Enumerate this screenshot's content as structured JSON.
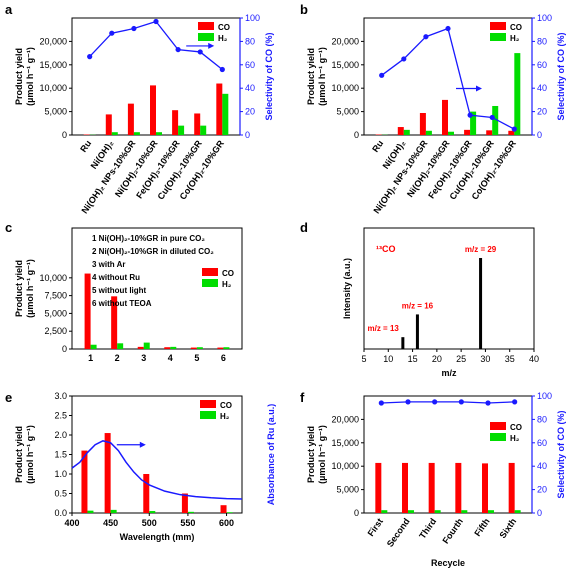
{
  "panel_labels": [
    "a",
    "b",
    "c",
    "d",
    "e",
    "f"
  ],
  "colors": {
    "co": "#ff0000",
    "h2": "#00dd00",
    "sel": "#1a1aff",
    "mass": "#000000",
    "annot": "#ff0000"
  },
  "chart_data": [
    {
      "panel": "a",
      "type": "bar",
      "ylabel_line1": "Product yield",
      "ylabel_line2": "(µmol h⁻¹ g⁻¹)",
      "y2label": "Selectivity of CO (%)",
      "ylim": [
        0,
        25000
      ],
      "yticks": [
        "0",
        "5,000",
        "10,000",
        "15,000",
        "20,000"
      ],
      "y2lim": [
        0,
        100
      ],
      "y2ticks": [
        "0",
        "20",
        "40",
        "60",
        "80",
        "100"
      ],
      "categories": [
        "Ru",
        "Ni(OH)₂",
        "Ni(OH)₂ NPs-10%GR",
        "Ni(OH)₂-10%GR",
        "Fe(OH)₃-10%GR",
        "Cu(OH)₂-10%GR",
        "Co(OH)₂-10%GR"
      ],
      "series": [
        {
          "name": "CO",
          "values": [
            100,
            4400,
            6700,
            10600,
            5300,
            4600,
            11000
          ]
        },
        {
          "name": "H₂",
          "values": [
            50,
            600,
            600,
            600,
            2000,
            2000,
            8800
          ]
        }
      ],
      "selectivity": [
        67,
        87,
        91,
        97,
        73,
        71,
        56
      ],
      "legend": [
        "CO",
        "H₂"
      ]
    },
    {
      "panel": "b",
      "type": "bar",
      "ylabel_line1": "Product yield",
      "ylabel_line2": "(µmol h⁻¹ g⁻¹)",
      "y2label": "Selectivity of CO (%)",
      "ylim": [
        0,
        25000
      ],
      "yticks": [
        "0",
        "5,000",
        "10,000",
        "15,000",
        "20,000"
      ],
      "y2lim": [
        0,
        100
      ],
      "y2ticks": [
        "0",
        "20",
        "40",
        "60",
        "80",
        "100"
      ],
      "categories": [
        "Ru",
        "Ni(OH)₂",
        "Ni(OH)₂ NPs-10%GR",
        "Ni(OH)₂-10%GR",
        "Fe(OH)₃-10%GR",
        "Cu(OH)₂-10%GR",
        "Co(OH)₂-10%GR"
      ],
      "series": [
        {
          "name": "CO",
          "values": [
            100,
            1700,
            4700,
            7500,
            1100,
            1000,
            900
          ]
        },
        {
          "name": "H₂",
          "values": [
            50,
            1100,
            900,
            700,
            5000,
            6200,
            17500
          ]
        }
      ],
      "selectivity": [
        51,
        65,
        84,
        91,
        17,
        15,
        5
      ],
      "legend": [
        "CO",
        "H₂"
      ]
    },
    {
      "panel": "c",
      "type": "bar",
      "ylabel_line1": "Product yield",
      "ylabel_line2": "(µmol h⁻¹ g⁻¹)",
      "ylim": [
        0,
        17000
      ],
      "yticks": [
        "0",
        "2,500",
        "5,000",
        "7,500",
        "10,000"
      ],
      "categories": [
        "1",
        "2",
        "3",
        "4",
        "5",
        "6"
      ],
      "series": [
        {
          "name": "CO",
          "values": [
            10600,
            7400,
            300,
            250,
            200,
            200
          ]
        },
        {
          "name": "H₂",
          "values": [
            600,
            800,
            900,
            300,
            250,
            250
          ]
        }
      ],
      "notes": [
        "1 Ni(OH)₂-10%GR in pure CO₂",
        "2 Ni(OH)₂-10%GR in diluted CO₂",
        "3 with Ar",
        "4 without Ru",
        "5 without light",
        "6 without TEOA"
      ],
      "legend": [
        "CO",
        "H₂"
      ]
    },
    {
      "panel": "d",
      "type": "bar",
      "xlabel": "m/z",
      "ylabel": "Intensity (a.u.)",
      "xlim": [
        5,
        40
      ],
      "xticks": [
        "5",
        "10",
        "15",
        "20",
        "25",
        "30",
        "35",
        "40"
      ],
      "title": "¹³CO",
      "peaks": [
        {
          "x": 13,
          "y": 0.13
        },
        {
          "x": 16,
          "y": 0.38
        },
        {
          "x": 29,
          "y": 1.0
        }
      ],
      "annotations": [
        "m/z = 13",
        "m/z = 16",
        "m/z = 29"
      ]
    },
    {
      "panel": "e",
      "type": "bar",
      "xlabel": "Wavelength (mm)",
      "ylabel_line1": "Product yield",
      "ylabel_line2": "(µmol h⁻¹ g⁻¹)",
      "y2label": "Absorbance of Ru (a.u.)",
      "xlim": [
        400,
        620
      ],
      "xticks": [
        "400",
        "450",
        "500",
        "550",
        "600"
      ],
      "ylim": [
        0,
        3.0
      ],
      "yticks": [
        "0.0",
        "0.5",
        "1.0",
        "1.5",
        "2.0",
        "2.5",
        "3.0"
      ],
      "categories": [
        "420",
        "450",
        "500",
        "550",
        "600"
      ],
      "series": [
        {
          "name": "CO",
          "values": [
            1.6,
            2.05,
            1.0,
            0.5,
            0.2
          ]
        },
        {
          "name": "H₂",
          "values": [
            0.06,
            0.08,
            0.05,
            0.03,
            0.02
          ]
        }
      ],
      "absorbance": [
        [
          400,
          1.15
        ],
        [
          410,
          1.3
        ],
        [
          420,
          1.55
        ],
        [
          430,
          1.75
        ],
        [
          440,
          1.85
        ],
        [
          450,
          1.8
        ],
        [
          460,
          1.6
        ],
        [
          470,
          1.3
        ],
        [
          480,
          1.05
        ],
        [
          490,
          0.85
        ],
        [
          500,
          0.72
        ],
        [
          520,
          0.56
        ],
        [
          540,
          0.47
        ],
        [
          560,
          0.42
        ],
        [
          580,
          0.39
        ],
        [
          600,
          0.37
        ],
        [
          620,
          0.36
        ]
      ],
      "legend": [
        "CO",
        "H₂"
      ]
    },
    {
      "panel": "f",
      "type": "bar",
      "xlabel": "Recycle",
      "ylabel_line1": "Product yield",
      "ylabel_line2": "(µmol h⁻¹ g⁻¹)",
      "y2label": "Selectivity of CO (%)",
      "ylim": [
        0,
        25000
      ],
      "yticks": [
        "0",
        "5,000",
        "10,000",
        "15,000",
        "20,000"
      ],
      "y2lim": [
        0,
        100
      ],
      "y2ticks": [
        "0",
        "20",
        "40",
        "60",
        "80",
        "100"
      ],
      "categories": [
        "First",
        "Second",
        "Third",
        "Fourth",
        "Fifth",
        "Sixth"
      ],
      "series": [
        {
          "name": "CO",
          "values": [
            10700,
            10700,
            10700,
            10700,
            10600,
            10700
          ]
        },
        {
          "name": "H₂",
          "values": [
            600,
            600,
            600,
            600,
            600,
            600
          ]
        }
      ],
      "selectivity": [
        94,
        95,
        95,
        95,
        94,
        95
      ],
      "legend": [
        "CO",
        "H₂"
      ]
    }
  ]
}
